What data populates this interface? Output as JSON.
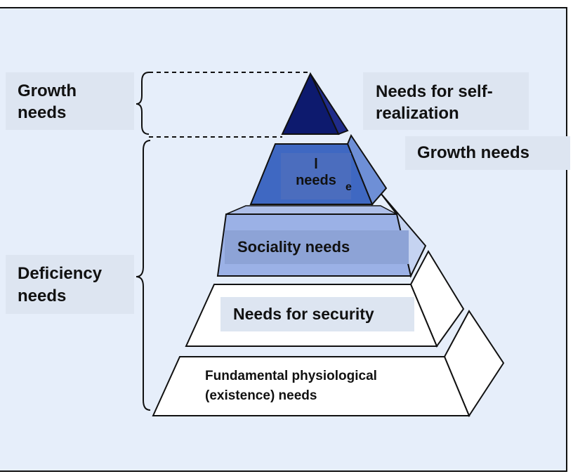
{
  "colors": {
    "background": "#e6eefa",
    "label_box": "#dde5f1",
    "tier_top": "#0d1a6e",
    "tier_esteem": "#3f68c2",
    "tier_social": "#9bb1e6",
    "tier_base": "#ffffff",
    "outline": "#111111"
  },
  "labels": {
    "growth_left": "Growth\nneeds",
    "deficiency_left": "Deficiency\nneeds",
    "self_realization": "Needs for self-\nrealization",
    "growth_right": "Growth needs",
    "esteem": "l\nneeds",
    "esteem_clip": "e",
    "sociality": "Sociality needs",
    "security": "Needs for security",
    "physiological": "Fundamental physiological\n(existence) needs"
  }
}
